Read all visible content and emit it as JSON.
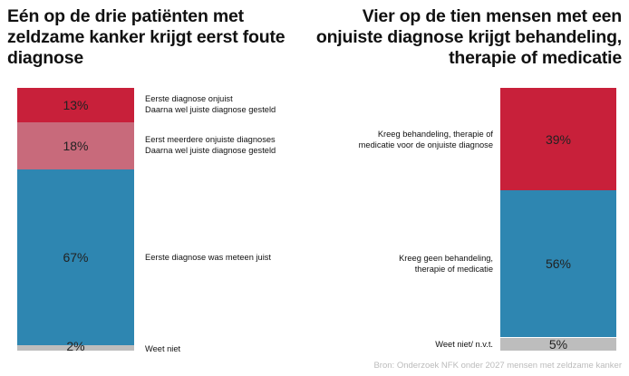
{
  "chart_data": [
    {
      "type": "bar",
      "stacked": true,
      "title": "Eén op de drie patiënten met zeldzame kanker krijgt eerst foute diagnose",
      "segments": [
        {
          "label": [
            "Eerste diagnose onjuist",
            "Daarna wel juiste diagnose gesteld"
          ],
          "value": 13,
          "value_label": "13%",
          "color": "#c8203a"
        },
        {
          "label": [
            "Eerst meerdere onjuiste diagnoses",
            "Daarna wel juiste diagnose gesteld"
          ],
          "value": 18,
          "value_label": "18%",
          "color": "#c86a7b"
        },
        {
          "label": [
            "Eerste diagnose was meteen juist"
          ],
          "value": 67,
          "value_label": "67%",
          "color": "#2e86b1"
        },
        {
          "label": [
            "Weet niet"
          ],
          "value": 2,
          "value_label": "2%",
          "color": "#bdbdbd"
        }
      ]
    },
    {
      "type": "bar",
      "stacked": true,
      "title": "Vier op de tien mensen met een onjuiste diagnose krijgt behandeling, therapie of medicatie",
      "segments": [
        {
          "label": [
            "Kreeg behandeling, therapie of",
            "medicatie voor de onjuiste diagnose"
          ],
          "value": 39,
          "value_label": "39%",
          "color": "#c8203a"
        },
        {
          "label": [
            "Kreeg geen behandeling,",
            "therapie of medicatie"
          ],
          "value": 56,
          "value_label": "56%",
          "color": "#2e86b1"
        },
        {
          "label": [
            "Weet niet/ n.v.t."
          ],
          "value": 5,
          "value_label": "5%",
          "color": "#bdbdbd"
        }
      ]
    }
  ],
  "source": "Bron: Onderzoek NFK onder 2027 mensen met zeldzame kanker"
}
